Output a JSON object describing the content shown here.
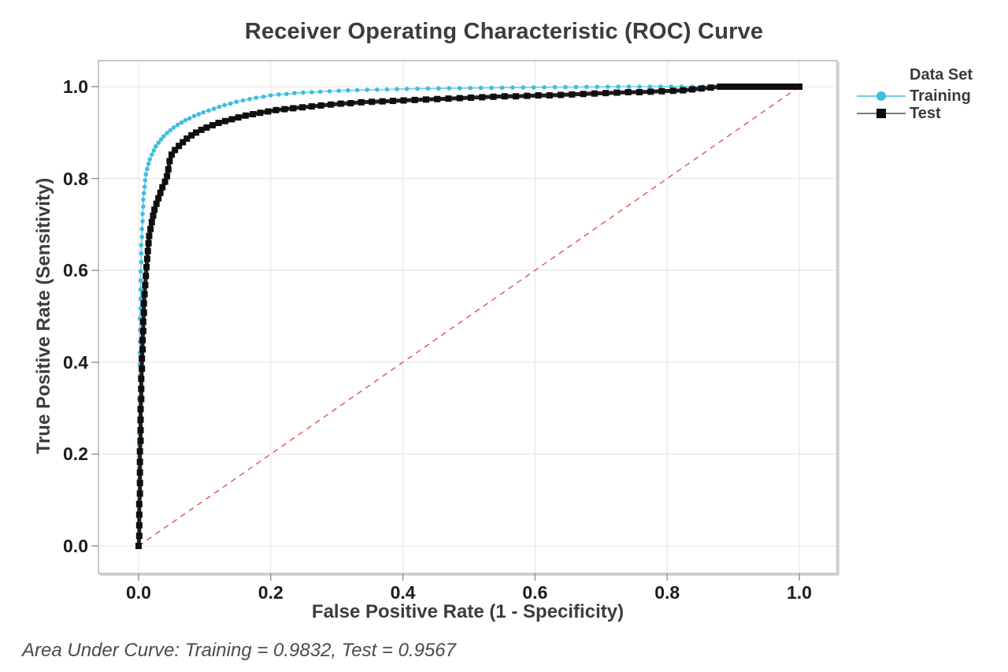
{
  "title": "Receiver Operating Characteristic (ROC) Curve",
  "footer_note": "Area Under Curve: Training = 0.9832, Test = 0.9567",
  "legend": {
    "title": "Data Set",
    "entries": [
      "Training",
      "Test"
    ]
  },
  "chart_data": {
    "type": "line",
    "title": "Receiver Operating Characteristic (ROC) Curve",
    "xlabel": "False Positive Rate (1 - Specificity)",
    "ylabel": "True Positive Rate (Sensitivity)",
    "x_ticks": [
      0.0,
      0.2,
      0.4,
      0.6,
      0.8,
      1.0
    ],
    "y_ticks": [
      0.0,
      0.2,
      0.4,
      0.6,
      0.8,
      1.0
    ],
    "xlim": [
      -0.06,
      1.06
    ],
    "ylim": [
      -0.06,
      1.06
    ],
    "grid": true,
    "legend_position": "right-top",
    "legend_title": "Data Set",
    "auc": {
      "Training": 0.9832,
      "Test": 0.9567
    },
    "annotation": "Area Under Curve: Training = 0.9832, Test = 0.9567",
    "colors": {
      "grid": "#eaeaea",
      "frame": "#b0b0b0",
      "frame_shadow": "#d6d6d6",
      "tick": "#8f8f8f",
      "reference": "#e05c5c"
    },
    "reference_line": {
      "from": [
        0,
        0
      ],
      "to": [
        1,
        1
      ],
      "color": "#e05c5c",
      "style": "dashed"
    },
    "series": [
      {
        "name": "Training",
        "marker": "circle",
        "color": "#3ebede",
        "line_color": "#6fcce5",
        "line_width": 1.6,
        "marker_size": 5.6,
        "points": [
          [
            0.0,
            0.0
          ],
          [
            0.0,
            0.024
          ],
          [
            0.0,
            0.048
          ],
          [
            0.0,
            0.072
          ],
          [
            0.0,
            0.096
          ],
          [
            0.001,
            0.12
          ],
          [
            0.001,
            0.145
          ],
          [
            0.001,
            0.17
          ],
          [
            0.001,
            0.195
          ],
          [
            0.001,
            0.22
          ],
          [
            0.001,
            0.245
          ],
          [
            0.001,
            0.27
          ],
          [
            0.001,
            0.295
          ],
          [
            0.001,
            0.32
          ],
          [
            0.002,
            0.345
          ],
          [
            0.002,
            0.37
          ],
          [
            0.002,
            0.395
          ],
          [
            0.002,
            0.42
          ],
          [
            0.002,
            0.445
          ],
          [
            0.002,
            0.47
          ],
          [
            0.002,
            0.495
          ],
          [
            0.003,
            0.517
          ],
          [
            0.003,
            0.538
          ],
          [
            0.003,
            0.558
          ],
          [
            0.003,
            0.578
          ],
          [
            0.003,
            0.598
          ],
          [
            0.004,
            0.618
          ],
          [
            0.004,
            0.637
          ],
          [
            0.004,
            0.655
          ],
          [
            0.005,
            0.673
          ],
          [
            0.005,
            0.69
          ],
          [
            0.006,
            0.707
          ],
          [
            0.006,
            0.723
          ],
          [
            0.007,
            0.739
          ],
          [
            0.007,
            0.754
          ],
          [
            0.008,
            0.768
          ],
          [
            0.009,
            0.782
          ],
          [
            0.01,
            0.796
          ],
          [
            0.011,
            0.809
          ],
          [
            0.013,
            0.821
          ],
          [
            0.015,
            0.832
          ],
          [
            0.017,
            0.842
          ],
          [
            0.02,
            0.852
          ],
          [
            0.023,
            0.861
          ],
          [
            0.026,
            0.87
          ],
          [
            0.03,
            0.878
          ],
          [
            0.034,
            0.885
          ],
          [
            0.038,
            0.892
          ],
          [
            0.043,
            0.899
          ],
          [
            0.048,
            0.905
          ],
          [
            0.053,
            0.911
          ],
          [
            0.059,
            0.917
          ],
          [
            0.065,
            0.922
          ],
          [
            0.071,
            0.927
          ],
          [
            0.077,
            0.931
          ],
          [
            0.084,
            0.936
          ],
          [
            0.091,
            0.94
          ],
          [
            0.098,
            0.944
          ],
          [
            0.106,
            0.948
          ],
          [
            0.114,
            0.952
          ],
          [
            0.122,
            0.956
          ],
          [
            0.13,
            0.96
          ],
          [
            0.139,
            0.963
          ],
          [
            0.148,
            0.967
          ],
          [
            0.158,
            0.97
          ],
          [
            0.168,
            0.973
          ],
          [
            0.178,
            0.976
          ],
          [
            0.189,
            0.978
          ],
          [
            0.2,
            0.981
          ],
          [
            0.212,
            0.983
          ],
          [
            0.224,
            0.984
          ],
          [
            0.236,
            0.986
          ],
          [
            0.249,
            0.987
          ],
          [
            0.262,
            0.988
          ],
          [
            0.275,
            0.989
          ],
          [
            0.289,
            0.99
          ],
          [
            0.303,
            0.991
          ],
          [
            0.317,
            0.992
          ],
          [
            0.331,
            0.9925
          ],
          [
            0.346,
            0.993
          ],
          [
            0.361,
            0.9935
          ],
          [
            0.376,
            0.994
          ],
          [
            0.391,
            0.9945
          ],
          [
            0.406,
            0.995
          ],
          [
            0.422,
            0.9955
          ],
          [
            0.438,
            0.996
          ],
          [
            0.454,
            0.9962
          ],
          [
            0.47,
            0.9965
          ],
          [
            0.486,
            0.9968
          ],
          [
            0.502,
            0.997
          ],
          [
            0.518,
            0.9972
          ],
          [
            0.534,
            0.9975
          ],
          [
            0.55,
            0.9978
          ],
          [
            0.566,
            0.998
          ],
          [
            0.582,
            0.9982
          ],
          [
            0.598,
            0.9985
          ],
          [
            0.614,
            0.9987
          ],
          [
            0.63,
            0.999
          ],
          [
            0.646,
            0.999
          ],
          [
            0.662,
            0.9992
          ],
          [
            0.678,
            0.9995
          ],
          [
            0.694,
            0.9995
          ],
          [
            0.71,
            0.9997
          ],
          [
            0.726,
            1.0
          ],
          [
            0.742,
            1.0
          ],
          [
            0.758,
            1.0
          ],
          [
            0.774,
            1.0
          ],
          [
            0.79,
            1.0
          ],
          [
            0.806,
            1.0
          ],
          [
            0.822,
            1.0
          ],
          [
            0.838,
            1.0
          ],
          [
            0.854,
            1.0
          ],
          [
            0.87,
            1.0
          ],
          [
            0.886,
            1.0
          ],
          [
            1.0,
            1.0
          ]
        ]
      },
      {
        "name": "Test",
        "marker": "square",
        "color": "#0f0f0f",
        "line_color": "#1f1f1f",
        "line_width": 5,
        "marker_size": 8,
        "points": [
          [
            0.0,
            0.0
          ],
          [
            0.001,
            0.022
          ],
          [
            0.001,
            0.045
          ],
          [
            0.001,
            0.068
          ],
          [
            0.001,
            0.091
          ],
          [
            0.002,
            0.114
          ],
          [
            0.002,
            0.137
          ],
          [
            0.002,
            0.16
          ],
          [
            0.002,
            0.183
          ],
          [
            0.002,
            0.206
          ],
          [
            0.003,
            0.229
          ],
          [
            0.003,
            0.252
          ],
          [
            0.003,
            0.275
          ],
          [
            0.003,
            0.298
          ],
          [
            0.004,
            0.32
          ],
          [
            0.004,
            0.342
          ],
          [
            0.004,
            0.364
          ],
          [
            0.005,
            0.386
          ],
          [
            0.005,
            0.408
          ],
          [
            0.006,
            0.428
          ],
          [
            0.006,
            0.448
          ],
          [
            0.007,
            0.468
          ],
          [
            0.007,
            0.488
          ],
          [
            0.008,
            0.508
          ],
          [
            0.008,
            0.528
          ],
          [
            0.009,
            0.548
          ],
          [
            0.01,
            0.568
          ],
          [
            0.011,
            0.588
          ],
          [
            0.012,
            0.607
          ],
          [
            0.013,
            0.625
          ],
          [
            0.014,
            0.642
          ],
          [
            0.015,
            0.659
          ],
          [
            0.016,
            0.675
          ],
          [
            0.018,
            0.69
          ],
          [
            0.02,
            0.705
          ],
          [
            0.022,
            0.719
          ],
          [
            0.024,
            0.732
          ],
          [
            0.027,
            0.745
          ],
          [
            0.03,
            0.757
          ],
          [
            0.033,
            0.769
          ],
          [
            0.036,
            0.781
          ],
          [
            0.04,
            0.793
          ],
          [
            0.043,
            0.805
          ],
          [
            0.045,
            0.82
          ],
          [
            0.047,
            0.838
          ],
          [
            0.05,
            0.852
          ],
          [
            0.055,
            0.862
          ],
          [
            0.061,
            0.871
          ],
          [
            0.067,
            0.879
          ],
          [
            0.073,
            0.887
          ],
          [
            0.08,
            0.894
          ],
          [
            0.087,
            0.9
          ],
          [
            0.095,
            0.906
          ],
          [
            0.103,
            0.911
          ],
          [
            0.112,
            0.916
          ],
          [
            0.121,
            0.921
          ],
          [
            0.131,
            0.925
          ],
          [
            0.141,
            0.929
          ],
          [
            0.151,
            0.933
          ],
          [
            0.162,
            0.937
          ],
          [
            0.173,
            0.94
          ],
          [
            0.184,
            0.943
          ],
          [
            0.196,
            0.946
          ],
          [
            0.208,
            0.949
          ],
          [
            0.221,
            0.951
          ],
          [
            0.234,
            0.953
          ],
          [
            0.248,
            0.955
          ],
          [
            0.262,
            0.957
          ],
          [
            0.276,
            0.959
          ],
          [
            0.291,
            0.961
          ],
          [
            0.306,
            0.963
          ],
          [
            0.321,
            0.964
          ],
          [
            0.337,
            0.966
          ],
          [
            0.353,
            0.967
          ],
          [
            0.369,
            0.968
          ],
          [
            0.385,
            0.969
          ],
          [
            0.401,
            0.97
          ],
          [
            0.418,
            0.971
          ],
          [
            0.435,
            0.972
          ],
          [
            0.452,
            0.973
          ],
          [
            0.469,
            0.974
          ],
          [
            0.486,
            0.975
          ],
          [
            0.503,
            0.976
          ],
          [
            0.52,
            0.977
          ],
          [
            0.537,
            0.978
          ],
          [
            0.554,
            0.979
          ],
          [
            0.571,
            0.979
          ],
          [
            0.588,
            0.98
          ],
          [
            0.605,
            0.981
          ],
          [
            0.622,
            0.981
          ],
          [
            0.639,
            0.982
          ],
          [
            0.656,
            0.983
          ],
          [
            0.673,
            0.984
          ],
          [
            0.69,
            0.985
          ],
          [
            0.707,
            0.986
          ],
          [
            0.724,
            0.987
          ],
          [
            0.741,
            0.988
          ],
          [
            0.758,
            0.988
          ],
          [
            0.775,
            0.989
          ],
          [
            0.792,
            0.99
          ],
          [
            0.809,
            0.991
          ],
          [
            0.824,
            0.992
          ],
          [
            0.838,
            0.994
          ],
          [
            0.852,
            0.996
          ],
          [
            0.866,
            0.998
          ],
          [
            0.88,
            1.0
          ],
          [
            0.888,
            1.0
          ],
          [
            0.896,
            1.0
          ],
          [
            0.904,
            1.0
          ],
          [
            0.912,
            1.0
          ],
          [
            0.92,
            1.0
          ],
          [
            0.928,
            1.0
          ],
          [
            0.936,
            1.0
          ],
          [
            0.944,
            1.0
          ],
          [
            0.952,
            1.0
          ],
          [
            0.96,
            1.0
          ],
          [
            0.968,
            1.0
          ],
          [
            0.976,
            1.0
          ],
          [
            0.984,
            1.0
          ],
          [
            0.992,
            1.0
          ],
          [
            1.0,
            1.0
          ]
        ]
      }
    ]
  }
}
